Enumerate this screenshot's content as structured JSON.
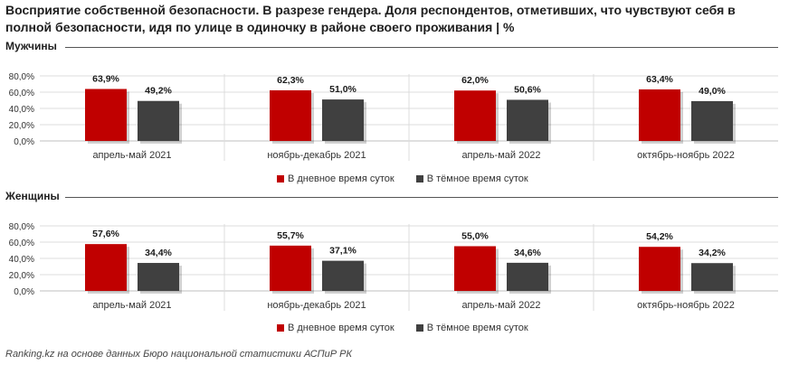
{
  "title": "Восприятие собственной безопасности. В разрезе гендера. Доля респондентов, отметивших, что чувствуют себя в полной безопасности, идя по улице в одиночку в районе своего проживания | %",
  "source": "Ranking.kz на основе данных Бюро национальной статистики АСПиР РК",
  "colors": {
    "day": "#c00000",
    "night": "#404040"
  },
  "chart_data": [
    {
      "type": "bar",
      "title": "Мужчины",
      "categories": [
        "апрель-май 2021",
        "ноябрь-декабрь 2021",
        "апрель-май 2022",
        "октябрь-ноябрь 2022"
      ],
      "series": [
        {
          "name": "В дневное время суток",
          "values": [
            63.9,
            62.3,
            62.0,
            63.4
          ],
          "labels": [
            "63,9%",
            "62,3%",
            "62,0%",
            "63,4%"
          ]
        },
        {
          "name": "В тёмное время суток",
          "values": [
            49.2,
            51.0,
            50.6,
            49.0
          ],
          "labels": [
            "49,2%",
            "51,0%",
            "50,6%",
            "49,0%"
          ]
        }
      ],
      "yticks": [
        "0,0%",
        "20,0%",
        "40,0%",
        "60,0%",
        "80,0%"
      ],
      "ylim": [
        0,
        80
      ],
      "grid": true,
      "legend": "bottom"
    },
    {
      "type": "bar",
      "title": "Женщины",
      "categories": [
        "апрель-май 2021",
        "ноябрь-декабрь 2021",
        "апрель-май 2022",
        "октябрь-ноябрь 2022"
      ],
      "series": [
        {
          "name": "В дневное время суток",
          "values": [
            57.6,
            55.7,
            55.0,
            54.2
          ],
          "labels": [
            "57,6%",
            "55,7%",
            "55,0%",
            "54,2%"
          ]
        },
        {
          "name": "В тёмное время суток",
          "values": [
            34.4,
            37.1,
            34.6,
            34.2
          ],
          "labels": [
            "34,4%",
            "37,1%",
            "34,6%",
            "34,2%"
          ]
        }
      ],
      "yticks": [
        "0,0%",
        "20,0%",
        "40,0%",
        "60,0%",
        "80,0%"
      ],
      "ylim": [
        0,
        80
      ],
      "grid": true,
      "legend": "bottom"
    }
  ]
}
